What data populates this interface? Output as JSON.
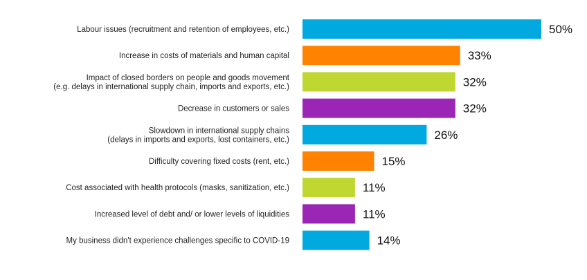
{
  "chart_data": {
    "type": "bar",
    "orientation": "horizontal",
    "title": "",
    "xlabel": "",
    "ylabel": "",
    "xlim": [
      0,
      50
    ],
    "grid": false,
    "categories": [
      [
        "Labour issues (recruitment and retention of employees, etc.)"
      ],
      [
        "Increase in costs of materials and human capital"
      ],
      [
        "Impact of closed borders on people and goods movement",
        "(e.g. delays in international supply chain, imports and exports, etc.)"
      ],
      [
        "Decrease in customers or sales"
      ],
      [
        "Slowdown in international supply chains",
        "(delays in imports and exports, lost containers, etc.)"
      ],
      [
        "Difficulty covering fixed costs (rent, etc.)"
      ],
      [
        "Cost associated with health protocols (masks, sanitization, etc.)"
      ],
      [
        "Increased level of debt and/ or lower levels of liquidities"
      ],
      [
        "My business didn't experience challenges specific to COVID-19"
      ]
    ],
    "values": [
      50,
      33,
      32,
      32,
      26,
      15,
      11,
      11,
      14
    ],
    "value_labels": [
      "50%",
      "33%",
      "32%",
      "32%",
      "26%",
      "15%",
      "11%",
      "11%",
      "14%"
    ],
    "colors": [
      "#00a9e0",
      "#ff8200",
      "#bfd730",
      "#9b26b6",
      "#00a9e0",
      "#ff8200",
      "#bfd730",
      "#9b26b6",
      "#00a9e0"
    ]
  }
}
